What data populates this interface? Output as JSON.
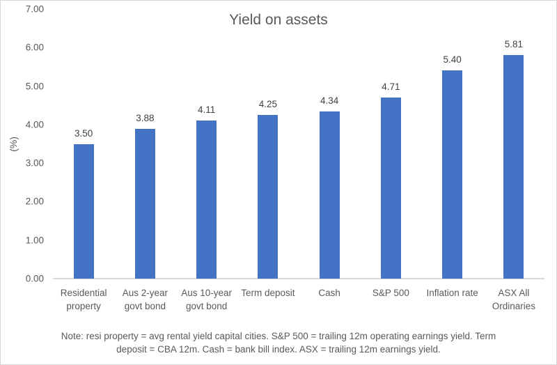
{
  "window": {
    "background": "#FFFFFF",
    "border_color": "#D6D6D6"
  },
  "chart_data": {
    "type": "bar",
    "title": "Yield on assets",
    "ylabel": "(%)",
    "xlabel": "",
    "categories": [
      "Residential property",
      "Aus 2-year govt bond",
      "Aus 10-year govt bond",
      "Term deposit",
      "Cash",
      "S&P 500",
      "Inflation rate",
      "ASX All Ordinaries"
    ],
    "values": [
      3.5,
      3.88,
      4.11,
      4.25,
      4.34,
      4.71,
      5.4,
      5.81
    ],
    "value_labels": [
      "3.50",
      "3.88",
      "4.11",
      "4.25",
      "4.34",
      "4.71",
      "5.40",
      "5.81"
    ],
    "ylim": [
      0,
      7
    ],
    "ytick_labels": [
      "0.00",
      "1.00",
      "2.00",
      "3.00",
      "4.00",
      "5.00",
      "6.00",
      "7.00"
    ],
    "grid": false,
    "legend": "none",
    "bar_color": "#4472C4",
    "axis_line_color": "#D9D9D9",
    "note_lines": [
      "Note: resi property = avg rental yield capital cities. S&P 500 = trailing 12m operating earnings yield. Term",
      "deposit = CBA 12m. Cash = bank bill index. ASX = trailing 12m earnings yield."
    ]
  }
}
